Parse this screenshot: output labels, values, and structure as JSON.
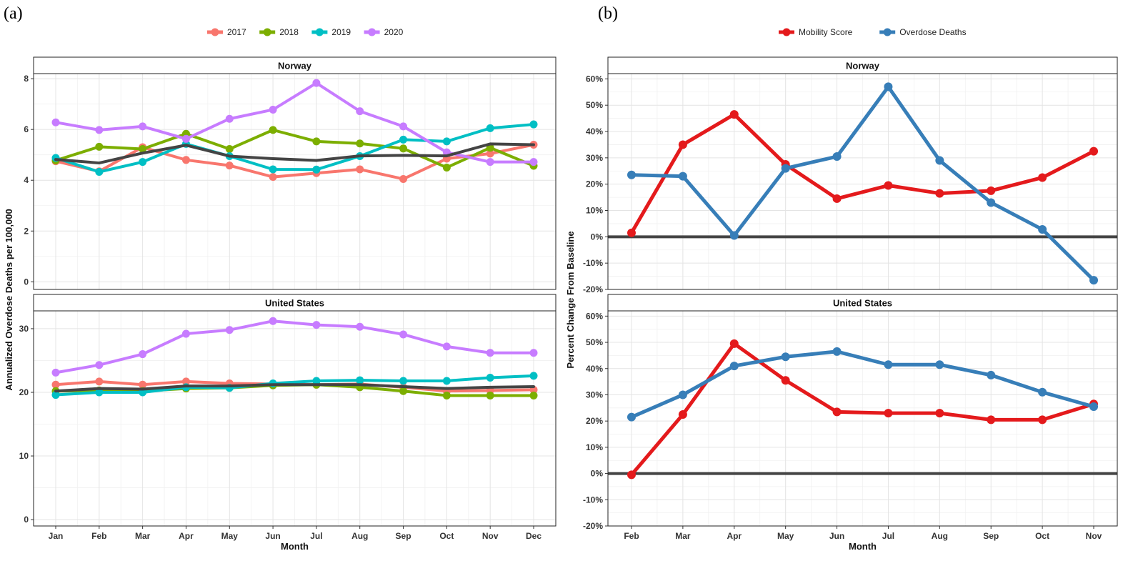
{
  "panels": {
    "a_label": "(a)",
    "b_label": "(b)"
  },
  "chart_data": [
    {
      "type": "line",
      "panel": "(a)",
      "x": [
        "Jan",
        "Feb",
        "Mar",
        "Apr",
        "May",
        "Jun",
        "Jul",
        "Aug",
        "Sep",
        "Oct",
        "Nov",
        "Dec"
      ],
      "xlabel": "Month",
      "ylabel": "Annualized Overdose Deaths per 100,000",
      "legend": {
        "placement": "top",
        "entries": [
          "2017",
          "2018",
          "2019",
          "2020"
        ]
      },
      "grid": true,
      "facets": [
        {
          "title": "Norway",
          "ylim": [
            -0.3,
            8.2
          ],
          "yticks": [
            0,
            2,
            4,
            6,
            8
          ],
          "series": [
            {
              "name": "2017",
              "color": "#F8766D",
              "values": [
                4.75,
                4.35,
                5.3,
                4.8,
                4.58,
                4.13,
                4.28,
                4.43,
                4.05,
                4.85,
                5.05,
                5.4
              ]
            },
            {
              "name": "2018",
              "color": "#7CAE00",
              "values": [
                4.78,
                5.32,
                5.23,
                5.83,
                5.23,
                5.98,
                5.53,
                5.45,
                5.25,
                4.5,
                5.28,
                4.57
              ]
            },
            {
              "name": "2019",
              "color": "#00BFC4",
              "values": [
                4.88,
                4.33,
                4.72,
                5.43,
                4.95,
                4.43,
                4.42,
                4.95,
                5.6,
                5.53,
                6.05,
                6.2
              ]
            },
            {
              "name": "2020",
              "color": "#C77CFF",
              "values": [
                6.28,
                5.98,
                6.12,
                5.63,
                6.42,
                6.78,
                7.83,
                6.72,
                6.12,
                5.1,
                4.72,
                4.72
              ]
            },
            {
              "name": "",
              "color": "#444444",
              "values": [
                4.82,
                4.68,
                5.07,
                5.38,
                4.95,
                4.85,
                4.78,
                4.96,
                4.98,
                4.96,
                5.43,
                5.4
              ]
            }
          ]
        },
        {
          "title": "United States",
          "ylim": [
            -1,
            32.8
          ],
          "yticks": [
            0,
            10,
            20,
            30
          ],
          "series": [
            {
              "name": "2017",
              "color": "#F8766D",
              "values": [
                21.2,
                21.7,
                21.2,
                21.7,
                21.4,
                21.3,
                21.2,
                21.3,
                20.8,
                20.2,
                20.3,
                20.4
              ]
            },
            {
              "name": "2018",
              "color": "#7CAE00",
              "values": [
                20.2,
                20.3,
                20.2,
                20.6,
                20.7,
                21.1,
                21.2,
                20.8,
                20.2,
                19.5,
                19.5,
                19.5
              ]
            },
            {
              "name": "2019",
              "color": "#00BFC4",
              "values": [
                19.6,
                20.0,
                20.0,
                20.8,
                20.7,
                21.4,
                21.8,
                21.9,
                21.8,
                21.8,
                22.3,
                22.6
              ]
            },
            {
              "name": "2020",
              "color": "#C77CFF",
              "values": [
                23.1,
                24.3,
                26.0,
                29.2,
                29.8,
                31.2,
                30.6,
                30.3,
                29.1,
                27.2,
                26.2,
                26.2
              ]
            },
            {
              "name": "",
              "color": "#444444",
              "values": [
                20.2,
                20.6,
                20.5,
                21.0,
                21.0,
                21.2,
                21.2,
                21.2,
                20.9,
                20.6,
                20.8,
                20.9
              ]
            }
          ]
        }
      ]
    },
    {
      "type": "line",
      "panel": "(b)",
      "x": [
        "Feb",
        "Mar",
        "Apr",
        "May",
        "Jun",
        "Jul",
        "Aug",
        "Sep",
        "Oct",
        "Nov"
      ],
      "xlabel": "Month",
      "ylabel": "Percent Change From Baseline",
      "legend": {
        "placement": "top",
        "entries": [
          "Mobility Score",
          "Overdose Deaths"
        ]
      },
      "grid": true,
      "reference_line": 0,
      "facets": [
        {
          "title": "Norway",
          "ylim": [
            -20,
            62
          ],
          "yticks": [
            -20,
            -10,
            0,
            10,
            20,
            30,
            40,
            50,
            60
          ],
          "series": [
            {
              "name": "Mobility Score",
              "color": "#E41A1C",
              "values": [
                1.5,
                35,
                46.5,
                27.5,
                14.5,
                19.5,
                16.5,
                17.5,
                22.5,
                32.5
              ]
            },
            {
              "name": "Overdose Deaths",
              "color": "#377EB8",
              "values": [
                23.5,
                23,
                0.5,
                26,
                30.5,
                57,
                29,
                13,
                2.8,
                -16.5
              ]
            }
          ]
        },
        {
          "title": "United States",
          "ylim": [
            -20,
            62
          ],
          "yticks": [
            -20,
            -10,
            0,
            10,
            20,
            30,
            40,
            50,
            60
          ],
          "series": [
            {
              "name": "Mobility Score",
              "color": "#E41A1C",
              "values": [
                -0.5,
                22.5,
                49.5,
                35.5,
                23.5,
                23,
                23,
                20.5,
                20.5,
                26.5
              ]
            },
            {
              "name": "Overdose Deaths",
              "color": "#377EB8",
              "values": [
                21.5,
                30,
                41,
                44.5,
                46.5,
                41.5,
                41.5,
                37.5,
                31,
                25.5
              ]
            }
          ]
        }
      ]
    }
  ]
}
